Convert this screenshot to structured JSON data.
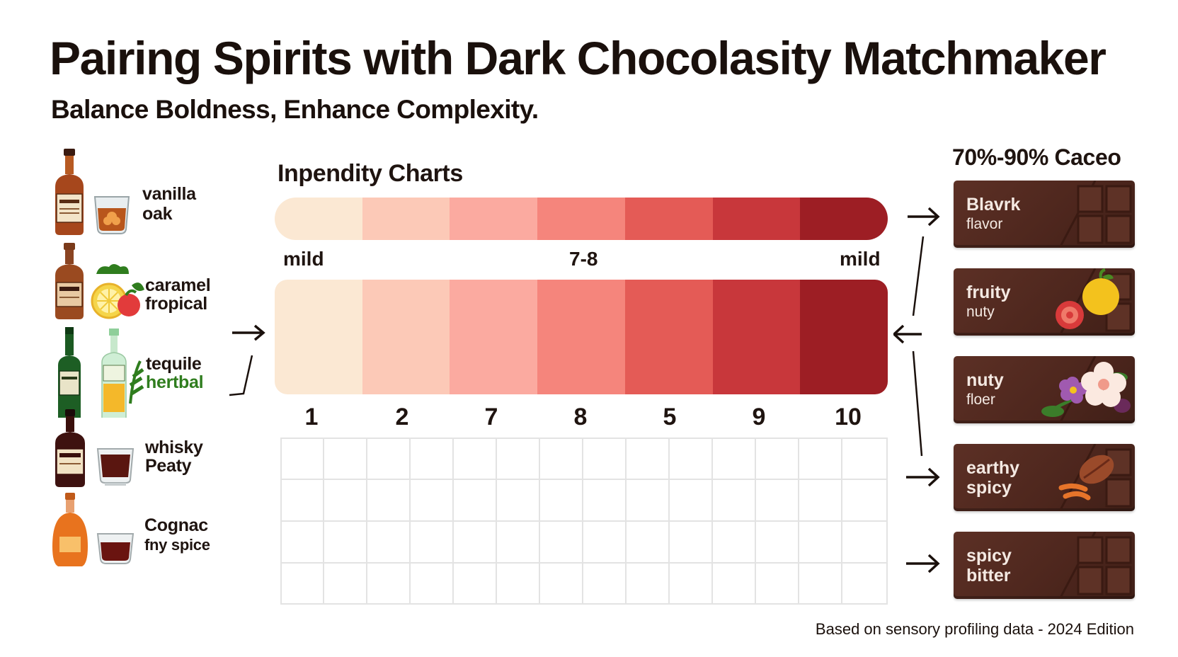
{
  "header": {
    "title": "Pairing Spirits with Dark Chocolasity Matchmaker",
    "subtitle": "Balance Boldness, Enhance Complexity."
  },
  "chart": {
    "title": "Inpendity Charts",
    "scale_labels": {
      "left": "mild",
      "middle": "7-8",
      "right": "mild"
    },
    "numbers": [
      "1",
      "2",
      "7",
      "8",
      "5",
      "9",
      "10"
    ],
    "segment_colors": [
      "#fbe8d3",
      "#fcc9b7",
      "#fbaaa0",
      "#f5857c",
      "#e45b56",
      "#c8373b",
      "#9d1e24"
    ]
  },
  "spirits": [
    {
      "line1": "vanilla",
      "line2": "oak",
      "icon": "bourbon-bottle-icon"
    },
    {
      "line1": "caramel",
      "line2": "fropical",
      "icon": "rum-bottle-icon"
    },
    {
      "line1": "tequile",
      "line2": "hertbal",
      "icon": "tequila-bottle-icon"
    },
    {
      "line1": "whisky",
      "line2": "Peaty",
      "icon": "whisky-bottle-icon"
    },
    {
      "line1": "Cognac",
      "line2": "fny spice",
      "icon": "cognac-bottle-icon"
    }
  ],
  "cacao": {
    "title": "70%-90% Caceo",
    "bars": [
      {
        "line1": "Blavrk",
        "line2": "flavor",
        "icon": "chocolate-bar-icon"
      },
      {
        "line1": "fruity",
        "line2": "nuty",
        "icon": "fruit-icon"
      },
      {
        "line1": "nuty",
        "line2": "floer",
        "icon": "flower-icon"
      },
      {
        "line1": "earthy",
        "line2": "spicy",
        "icon": "cacao-bean-icon"
      },
      {
        "line1": "spicy",
        "line2": "bitter",
        "icon": "chocolate-bar-icon"
      }
    ]
  },
  "colors": {
    "chocolate": "#4d261d",
    "text": "#1a100c",
    "herbal_green": "#2f7d1e"
  },
  "footer": "Based on sensory profiling data - 2024 Edition"
}
